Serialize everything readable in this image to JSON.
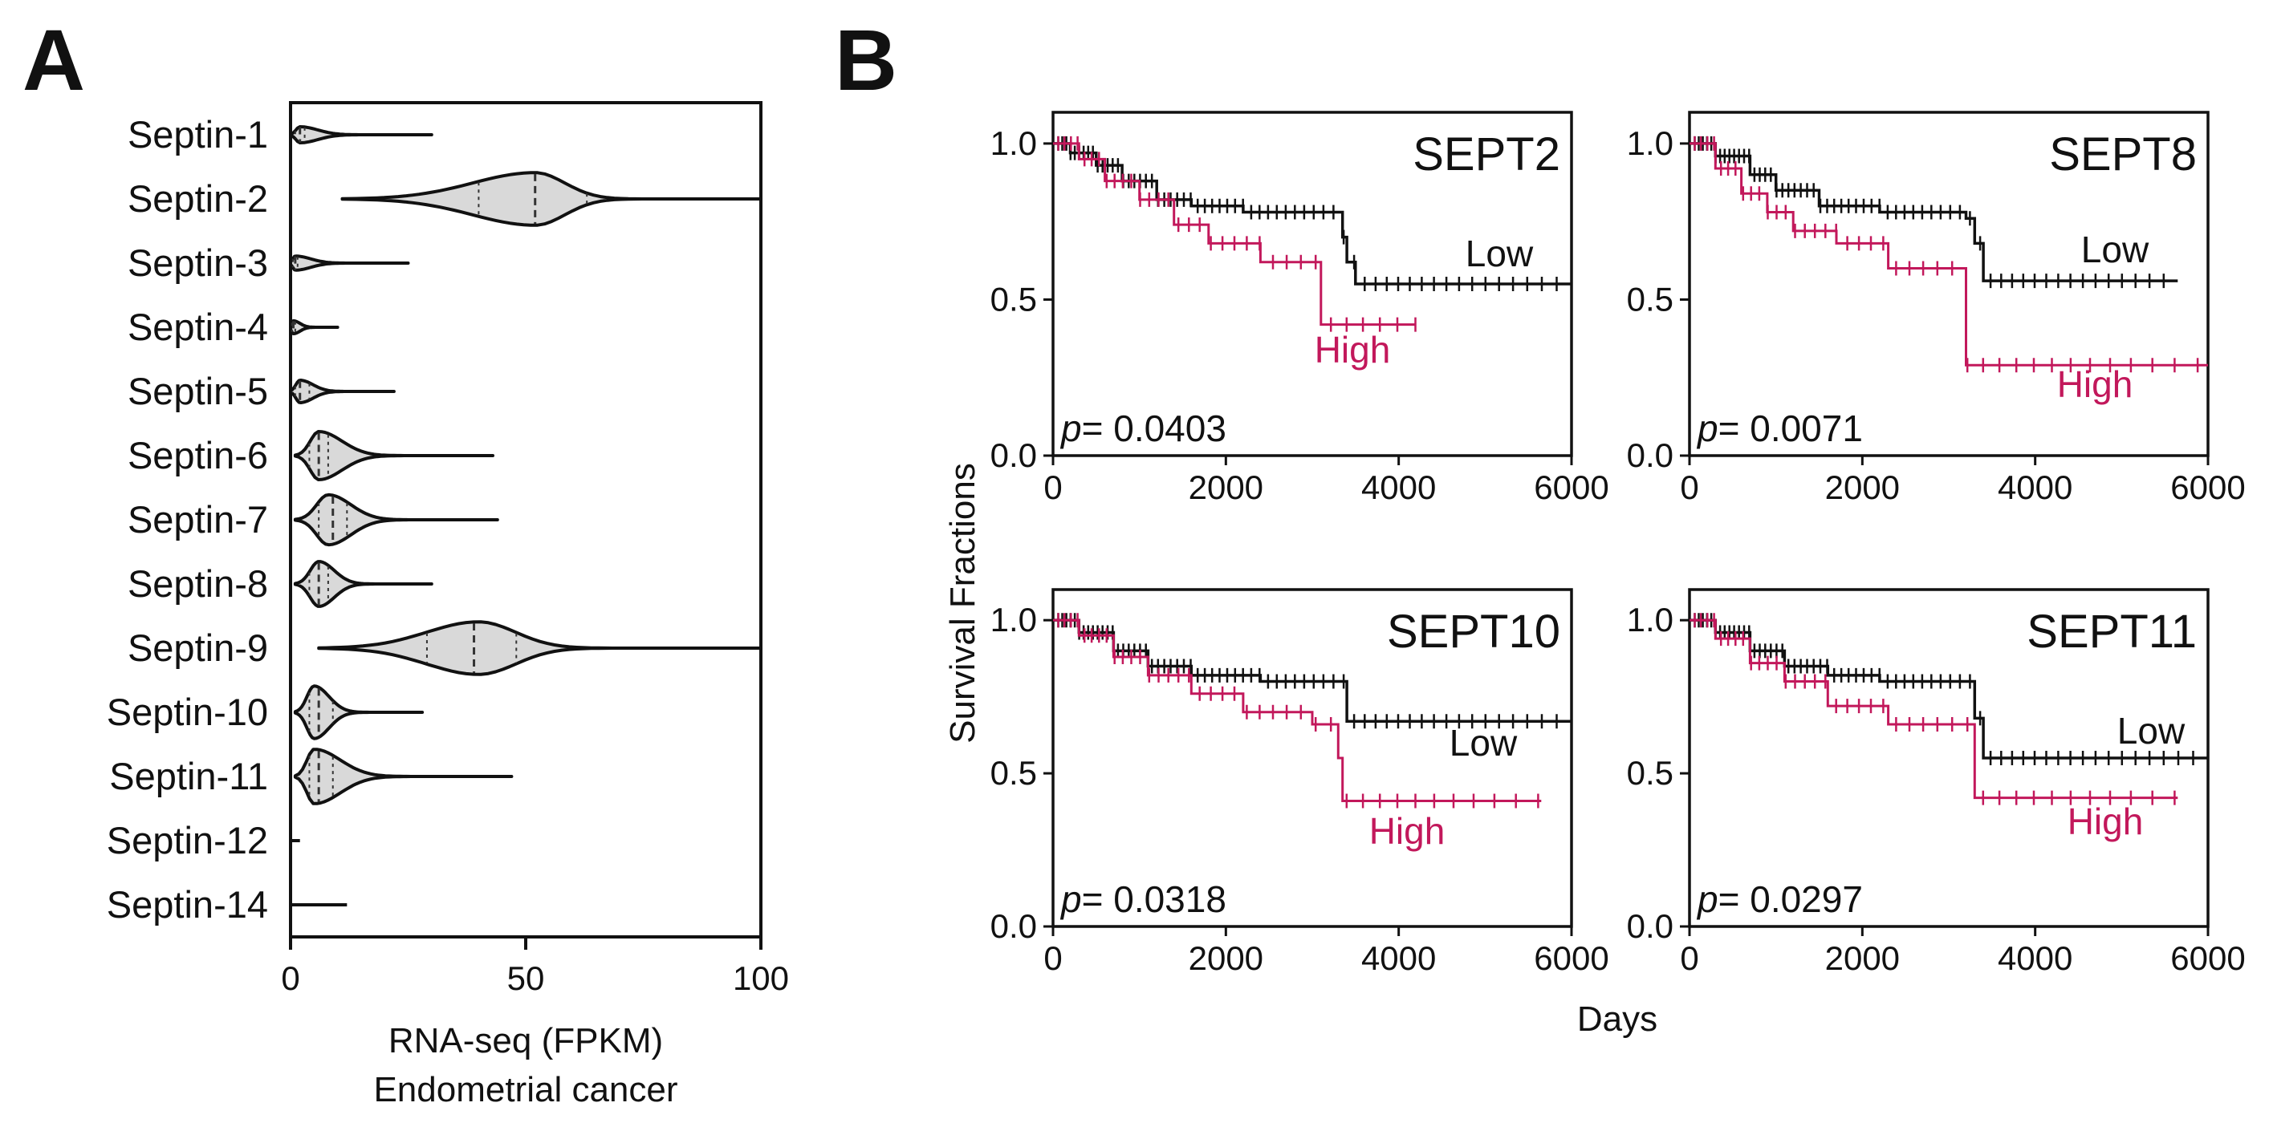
{
  "colors": {
    "low": "#111111",
    "high": "#c2185b",
    "violin_fill": "#d9d9d9"
  },
  "panel_a": {
    "letter": "A",
    "xlabel_line1": "RNA-seq (FPKM)",
    "xlabel_line2": "Endometrial cancer",
    "chart_data": {
      "type": "violin",
      "orientation": "horizontal",
      "xlim": [
        0,
        100
      ],
      "xticks": [
        "0",
        "50",
        "100"
      ],
      "categories": [
        "Septin-1",
        "Septin-2",
        "Septin-3",
        "Septin-4",
        "Septin-5",
        "Septin-6",
        "Septin-7",
        "Septin-8",
        "Septin-9",
        "Septin-10",
        "Septin-11",
        "Septin-12",
        "Septin-14"
      ],
      "series": [
        {
          "name": "Septin-1",
          "min": 0,
          "q1": 1,
          "median": 2,
          "q3": 3,
          "max": 30,
          "peak": 2,
          "width": 0.25
        },
        {
          "name": "Septin-2",
          "min": 11,
          "q1": 40,
          "median": 52,
          "q3": 63,
          "max": 100,
          "peak": 52,
          "width": 0.82
        },
        {
          "name": "Septin-3",
          "min": 0,
          "q1": 0.5,
          "median": 1,
          "q3": 1.5,
          "max": 25,
          "peak": 1,
          "width": 0.22
        },
        {
          "name": "Septin-4",
          "min": 0,
          "q1": 0.3,
          "median": 0.6,
          "q3": 1,
          "max": 10,
          "peak": 0.6,
          "width": 0.2
        },
        {
          "name": "Septin-5",
          "min": 0,
          "q1": 1,
          "median": 2,
          "q3": 4,
          "max": 22,
          "peak": 2,
          "width": 0.35
        },
        {
          "name": "Septin-6",
          "min": 1,
          "q1": 4,
          "median": 6,
          "q3": 8,
          "max": 43,
          "peak": 6,
          "width": 0.75
        },
        {
          "name": "Septin-7",
          "min": 1,
          "q1": 6,
          "median": 9,
          "q3": 12,
          "max": 44,
          "peak": 8,
          "width": 0.78
        },
        {
          "name": "Septin-8",
          "min": 1,
          "q1": 4,
          "median": 6,
          "q3": 8,
          "max": 30,
          "peak": 6,
          "width": 0.7
        },
        {
          "name": "Septin-9",
          "min": 6,
          "q1": 29,
          "median": 39,
          "q3": 48,
          "max": 100,
          "peak": 40,
          "width": 0.82
        },
        {
          "name": "Septin-10",
          "min": 1,
          "q1": 4,
          "median": 6,
          "q3": 9,
          "max": 28,
          "peak": 5,
          "width": 0.82
        },
        {
          "name": "Septin-11",
          "min": 1,
          "q1": 4,
          "median": 6,
          "q3": 9,
          "max": 47,
          "peak": 5,
          "width": 0.85
        },
        {
          "name": "Septin-12",
          "min": 0,
          "q1": 0,
          "median": 0,
          "q3": 0,
          "max": 2,
          "peak": 0,
          "width": 0
        },
        {
          "name": "Septin-14",
          "min": 0,
          "q1": 0,
          "median": 0,
          "q3": 0,
          "max": 12,
          "peak": 0,
          "width": 0
        }
      ]
    }
  },
  "panel_b": {
    "letter": "B",
    "ylabel": "Survival Fractions",
    "xlabel": "Days",
    "chart_data": [
      {
        "type": "line",
        "title": "SEPT2",
        "p_prefix": "p",
        "p_value": "= 0.0403",
        "xlim": [
          0,
          6000
        ],
        "ylim": [
          0,
          1.1
        ],
        "xticks": [
          "0",
          "2000",
          "4000",
          "6000"
        ],
        "yticks": [
          "0.0",
          "0.5",
          "1.0"
        ],
        "series": [
          {
            "name": "Low",
            "x": [
              0,
              200,
              500,
              800,
              1200,
              1600,
              2200,
              3300,
              3350,
              3400,
              3500,
              6000
            ],
            "y": [
              1.0,
              0.97,
              0.93,
              0.88,
              0.82,
              0.8,
              0.78,
              0.78,
              0.7,
              0.62,
              0.55,
              0.55
            ]
          },
          {
            "name": "High",
            "x": [
              0,
              300,
              600,
              1000,
              1400,
              1800,
              2400,
              3100,
              3100,
              4200
            ],
            "y": [
              1.0,
              0.95,
              0.88,
              0.82,
              0.74,
              0.68,
              0.62,
              0.62,
              0.42,
              0.42
            ]
          }
        ]
      },
      {
        "type": "line",
        "title": "SEPT8",
        "p_prefix": "p",
        "p_value": "= 0.0071",
        "xlim": [
          0,
          6000
        ],
        "ylim": [
          0,
          1.1
        ],
        "xticks": [
          "0",
          "2000",
          "4000",
          "6000"
        ],
        "yticks": [
          "0.0",
          "0.5",
          "1.0"
        ],
        "series": [
          {
            "name": "Low",
            "x": [
              0,
              300,
              700,
              1000,
              1500,
              2200,
              3200,
              3300,
              3400,
              5650
            ],
            "y": [
              1.0,
              0.96,
              0.9,
              0.85,
              0.8,
              0.78,
              0.76,
              0.68,
              0.56,
              0.56
            ]
          },
          {
            "name": "High",
            "x": [
              0,
              300,
              600,
              900,
              1200,
              1700,
              2300,
              3200,
              3200,
              6000
            ],
            "y": [
              1.0,
              0.92,
              0.84,
              0.78,
              0.72,
              0.68,
              0.6,
              0.6,
              0.29,
              0.29
            ]
          }
        ]
      },
      {
        "type": "line",
        "title": "SEPT10",
        "p_prefix": "p",
        "p_value": "= 0.0318",
        "xlim": [
          0,
          6000
        ],
        "ylim": [
          0,
          1.1
        ],
        "xticks": [
          "0",
          "2000",
          "4000",
          "6000"
        ],
        "yticks": [
          "0.0",
          "0.5",
          "1.0"
        ],
        "series": [
          {
            "name": "Low",
            "x": [
              0,
              300,
              700,
              1100,
              1600,
              2400,
              3400,
              3400,
              6000
            ],
            "y": [
              1.0,
              0.96,
              0.9,
              0.85,
              0.82,
              0.8,
              0.8,
              0.67,
              0.67
            ]
          },
          {
            "name": "High",
            "x": [
              0,
              300,
              700,
              1100,
              1600,
              2200,
              3000,
              3300,
              3350,
              5650
            ],
            "y": [
              1.0,
              0.95,
              0.88,
              0.82,
              0.76,
              0.7,
              0.66,
              0.55,
              0.41,
              0.41
            ]
          }
        ]
      },
      {
        "type": "line",
        "title": "SEPT11",
        "p_prefix": "p",
        "p_value": "= 0.0297",
        "xlim": [
          0,
          6000
        ],
        "ylim": [
          0,
          1.1
        ],
        "xticks": [
          "0",
          "2000",
          "4000",
          "6000"
        ],
        "yticks": [
          "0.0",
          "0.5",
          "1.0"
        ],
        "series": [
          {
            "name": "Low",
            "x": [
              0,
              300,
              700,
              1100,
              1600,
              2200,
              3100,
              3300,
              3400,
              6000
            ],
            "y": [
              1.0,
              0.96,
              0.9,
              0.85,
              0.82,
              0.8,
              0.8,
              0.68,
              0.55,
              0.55
            ]
          },
          {
            "name": "High",
            "x": [
              0,
              300,
              700,
              1100,
              1600,
              2300,
              3300,
              3300,
              5650
            ],
            "y": [
              1.0,
              0.94,
              0.86,
              0.8,
              0.72,
              0.66,
              0.56,
              0.42,
              0.42
            ]
          }
        ]
      }
    ],
    "group_labels": {
      "low": "Low",
      "high": "High"
    }
  }
}
